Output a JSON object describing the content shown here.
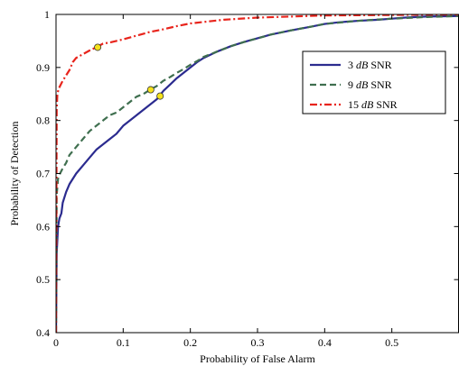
{
  "chart_data": {
    "type": "line",
    "title": "",
    "xlabel": "Probability of False Alarm",
    "ylabel": "Probability of Detection",
    "xlim": [
      0,
      0.6
    ],
    "ylim": [
      0.4,
      1.0
    ],
    "xticks": [
      0,
      0.1,
      0.2,
      0.3,
      0.4,
      0.5
    ],
    "yticks": [
      0.4,
      0.5,
      0.6,
      0.7,
      0.8,
      0.9,
      1.0
    ],
    "xtick_labels": [
      "0",
      "0.1",
      "0.2",
      "0.3",
      "0.4",
      "0.5"
    ],
    "ytick_labels": [
      "0.4",
      "0.5",
      "0.6",
      "0.7",
      "0.8",
      "0.9",
      "1"
    ],
    "grid": false,
    "legend_position": "top-right",
    "series": [
      {
        "name": "3 dB SNR",
        "legend_number": "3",
        "legend_unit": "dB",
        "legend_suffix": "SNR",
        "color": "#2b2b8f",
        "dash": "solid",
        "x": [
          0,
          0.001,
          0.003,
          0.005,
          0.008,
          0.01,
          0.015,
          0.02,
          0.025,
          0.03,
          0.04,
          0.05,
          0.06,
          0.07,
          0.08,
          0.09,
          0.1,
          0.11,
          0.12,
          0.13,
          0.14,
          0.15,
          0.155,
          0.16,
          0.17,
          0.18,
          0.19,
          0.2,
          0.21,
          0.22,
          0.24,
          0.26,
          0.28,
          0.3,
          0.32,
          0.35,
          0.38,
          0.4,
          0.42,
          0.45,
          0.48,
          0.5,
          0.52,
          0.55,
          0.6
        ],
        "y": [
          0.4,
          0.55,
          0.6,
          0.615,
          0.625,
          0.645,
          0.665,
          0.68,
          0.69,
          0.7,
          0.715,
          0.73,
          0.745,
          0.755,
          0.765,
          0.775,
          0.79,
          0.8,
          0.81,
          0.82,
          0.83,
          0.84,
          0.848,
          0.856,
          0.868,
          0.88,
          0.89,
          0.9,
          0.91,
          0.918,
          0.93,
          0.94,
          0.948,
          0.955,
          0.962,
          0.97,
          0.977,
          0.982,
          0.985,
          0.988,
          0.99,
          0.992,
          0.994,
          0.996,
          0.997
        ]
      },
      {
        "name": "9 dB SNR",
        "legend_number": "9",
        "legend_unit": "dB",
        "legend_suffix": "SNR",
        "color": "#3f6f4f",
        "dash": "dashed",
        "x": [
          0,
          0.001,
          0.003,
          0.006,
          0.01,
          0.015,
          0.02,
          0.03,
          0.04,
          0.05,
          0.06,
          0.07,
          0.08,
          0.09,
          0.1,
          0.11,
          0.12,
          0.13,
          0.14,
          0.15,
          0.16,
          0.17,
          0.18,
          0.19,
          0.2,
          0.21,
          0.22,
          0.24,
          0.26,
          0.28,
          0.3,
          0.32,
          0.35,
          0.38,
          0.4,
          0.45,
          0.5,
          0.55,
          0.6
        ],
        "y": [
          0.4,
          0.66,
          0.69,
          0.7,
          0.71,
          0.72,
          0.735,
          0.75,
          0.765,
          0.78,
          0.79,
          0.8,
          0.81,
          0.815,
          0.825,
          0.835,
          0.845,
          0.85,
          0.858,
          0.865,
          0.875,
          0.882,
          0.89,
          0.897,
          0.905,
          0.912,
          0.92,
          0.93,
          0.94,
          0.948,
          0.955,
          0.962,
          0.97,
          0.977,
          0.982,
          0.988,
          0.992,
          0.995,
          0.997
        ]
      },
      {
        "name": "15 dB SNR",
        "legend_number": "15",
        "legend_unit": "dB",
        "legend_suffix": "SNR",
        "color": "#e8241c",
        "dash": "dashdot",
        "x": [
          0,
          0.001,
          0.002,
          0.004,
          0.006,
          0.01,
          0.015,
          0.02,
          0.025,
          0.03,
          0.04,
          0.05,
          0.06,
          0.07,
          0.08,
          0.1,
          0.12,
          0.14,
          0.16,
          0.18,
          0.2,
          0.25,
          0.3,
          0.35,
          0.4,
          0.5,
          0.6
        ],
        "y": [
          0.4,
          0.82,
          0.85,
          0.86,
          0.865,
          0.875,
          0.885,
          0.895,
          0.91,
          0.918,
          0.925,
          0.932,
          0.938,
          0.945,
          0.947,
          0.953,
          0.96,
          0.967,
          0.972,
          0.978,
          0.983,
          0.99,
          0.994,
          0.996,
          0.998,
          0.999,
          1.0
        ]
      }
    ],
    "markers": [
      {
        "series": "15 dB SNR",
        "x": 0.062,
        "y": 0.938,
        "color": "#f5e21b"
      },
      {
        "series": "9 dB SNR",
        "x": 0.141,
        "y": 0.858,
        "color": "#f5e21b"
      },
      {
        "series": "3 dB SNR",
        "x": 0.155,
        "y": 0.846,
        "color": "#f5e21b"
      }
    ]
  }
}
